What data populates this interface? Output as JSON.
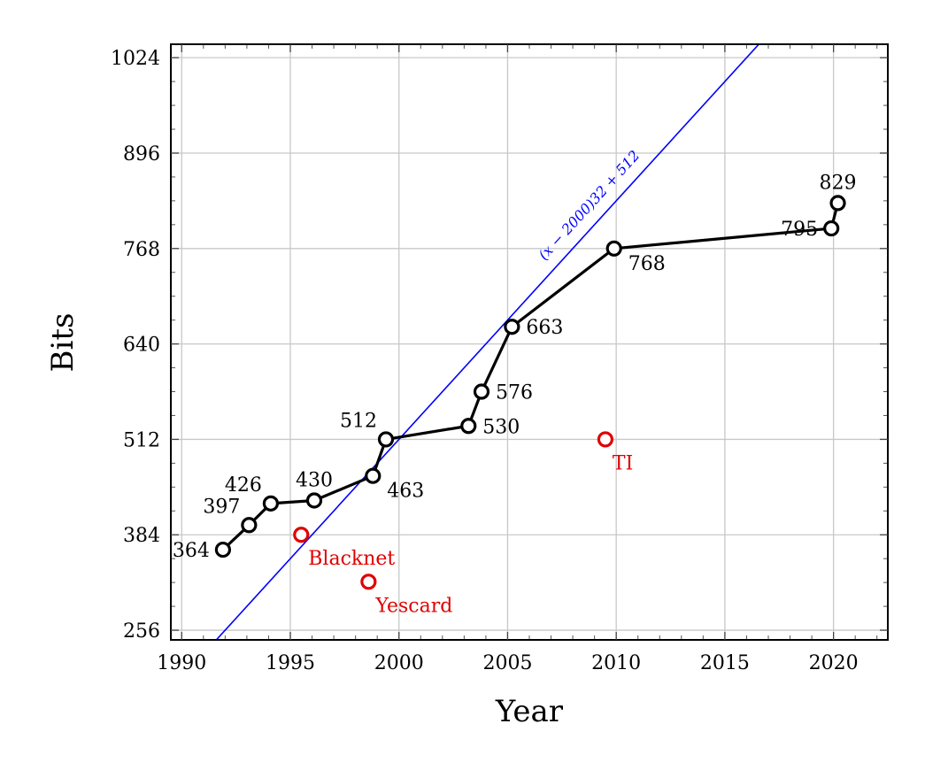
{
  "chart_data": {
    "type": "line",
    "xlabel": "Year",
    "ylabel": "Bits",
    "xlim": [
      1989.5,
      2022.5
    ],
    "ylim": [
      243,
      1042
    ],
    "x_ticks": [
      1990,
      1995,
      2000,
      2005,
      2010,
      2015,
      2020
    ],
    "x_minor_step": 1,
    "y_ticks": [
      256,
      384,
      512,
      640,
      768,
      896,
      1024
    ],
    "y_minor_step": 32,
    "grid": true,
    "series": [
      {
        "color": "#000000",
        "marker": "open-circle",
        "points": [
          {
            "x": 1991.9,
            "y": 364,
            "label": "364",
            "label_pos": "left"
          },
          {
            "x": 1993.1,
            "y": 397,
            "label": "397",
            "label_pos": "upper-left"
          },
          {
            "x": 1994.1,
            "y": 426,
            "label": "426",
            "label_pos": "upper-left"
          },
          {
            "x": 1996.1,
            "y": 430,
            "label": "430",
            "label_pos": "above"
          },
          {
            "x": 1998.8,
            "y": 463,
            "label": "463",
            "label_pos": "lower-right"
          },
          {
            "x": 1999.4,
            "y": 512,
            "label": "512",
            "label_pos": "upper-left"
          },
          {
            "x": 2003.2,
            "y": 530,
            "label": "530",
            "label_pos": "right"
          },
          {
            "x": 2003.8,
            "y": 576,
            "label": "576",
            "label_pos": "right"
          },
          {
            "x": 2005.2,
            "y": 663,
            "label": "663",
            "label_pos": "right"
          },
          {
            "x": 2009.9,
            "y": 768,
            "label": "768",
            "label_pos": "lower-right"
          },
          {
            "x": 2019.9,
            "y": 795,
            "label": "795",
            "label_pos": "left"
          },
          {
            "x": 2020.2,
            "y": 829,
            "label": "829",
            "label_pos": "above"
          }
        ]
      }
    ],
    "outliers": {
      "color": "#e00000",
      "marker": "open-circle",
      "points": [
        {
          "x": 1995.5,
          "y": 384,
          "label": "Blacknet"
        },
        {
          "x": 1998.6,
          "y": 321,
          "label": "Yescard"
        },
        {
          "x": 2009.5,
          "y": 512,
          "label": "TI"
        }
      ]
    },
    "fit_line": {
      "color": "#0000ff",
      "formula": "(x − 2000)32 + 512",
      "slope": 32,
      "x0": 2000,
      "y0": 512
    }
  }
}
